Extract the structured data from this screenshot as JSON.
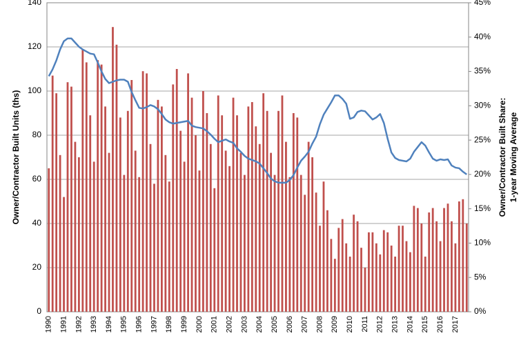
{
  "chart_data": {
    "type": "bar",
    "ylabel": "Owner/Contractor Built Units (ths)",
    "y2label": [
      "Owner/Contractor Built Share:",
      "1-year Moving Average"
    ],
    "ylim": [
      0,
      140
    ],
    "yticks": [
      0,
      20,
      40,
      60,
      80,
      100,
      120,
      140
    ],
    "y2lim": [
      0,
      45
    ],
    "y2ticks": [
      {
        "value": 0,
        "label": "0%"
      },
      {
        "value": 5,
        "label": "5%"
      },
      {
        "value": 10,
        "label": "10%"
      },
      {
        "value": 15,
        "label": "15%"
      },
      {
        "value": 20,
        "label": "20%"
      },
      {
        "value": 25,
        "label": "25%"
      },
      {
        "value": 30,
        "label": "30%"
      },
      {
        "value": 35,
        "label": "35%"
      },
      {
        "value": 40,
        "label": "40%"
      },
      {
        "value": 45,
        "label": "45%"
      }
    ],
    "grid": true,
    "categories": [
      "1990",
      null,
      null,
      null,
      "1991",
      null,
      null,
      null,
      "1992",
      null,
      null,
      null,
      "1993",
      null,
      null,
      null,
      "1994",
      null,
      null,
      null,
      "1995",
      null,
      null,
      null,
      "1996",
      null,
      null,
      null,
      "1997",
      null,
      null,
      null,
      "1998",
      null,
      null,
      null,
      "1999",
      null,
      null,
      null,
      "2000",
      null,
      null,
      null,
      "2001",
      null,
      null,
      null,
      "2002",
      null,
      null,
      null,
      "2003",
      null,
      null,
      null,
      "2004",
      null,
      null,
      null,
      "2005",
      null,
      null,
      null,
      "2006",
      null,
      null,
      null,
      "2007",
      null,
      null,
      null,
      "2008",
      null,
      null,
      null,
      "2009",
      null,
      null,
      null,
      "2010",
      null,
      null,
      null,
      "2011",
      null,
      null,
      null,
      "2012",
      null,
      null,
      null,
      "2013",
      null,
      null,
      null,
      "2014",
      null,
      null,
      null,
      "2015",
      null,
      null,
      null,
      "2016",
      null,
      null,
      null,
      "2017",
      null,
      null,
      null
    ],
    "series": [
      {
        "type": "bar",
        "color": "#c0504d",
        "values": [
          65,
          107,
          99,
          71,
          52,
          104,
          102,
          77,
          70,
          119,
          113,
          89,
          68,
          114,
          112,
          93,
          72,
          129,
          121,
          88,
          62,
          91,
          105,
          73,
          61,
          109,
          108,
          76,
          58,
          96,
          93,
          71,
          59,
          103,
          110,
          82,
          68,
          108,
          97,
          80,
          64,
          100,
          90,
          76,
          56,
          98,
          89,
          73,
          66,
          97,
          89,
          72,
          62,
          93,
          95,
          84,
          76,
          99,
          91,
          72,
          62,
          91,
          98,
          77,
          61,
          90,
          88,
          62,
          53,
          77,
          70,
          54,
          39,
          59,
          46,
          33,
          24,
          38,
          42,
          31,
          25,
          44,
          41,
          29,
          20,
          36,
          36,
          31,
          26,
          37,
          36,
          30,
          25,
          39,
          39,
          32,
          27,
          48,
          47,
          40,
          25,
          45,
          47,
          41,
          32,
          47,
          49,
          41,
          31,
          50,
          51,
          40
        ]
      },
      {
        "type": "line",
        "axis": "y2",
        "color": "#4f81bd",
        "values": [
          34.3,
          35.3,
          36.6,
          38.2,
          39.4,
          39.8,
          39.8,
          39.2,
          38.6,
          38.2,
          37.9,
          37.6,
          37.5,
          36.3,
          35,
          33.9,
          33.3,
          33.5,
          33.7,
          33.8,
          33.8,
          33.5,
          32,
          30.8,
          29.7,
          29.6,
          29.8,
          30.1,
          29.9,
          29.5,
          28.8,
          28,
          27.6,
          27.4,
          27.5,
          27.6,
          27.7,
          27.8,
          27.1,
          26.9,
          26.8,
          26.7,
          26.3,
          25.8,
          25.2,
          24.7,
          24.9,
          25.1,
          24.8,
          24.6,
          23.8,
          23.3,
          22.7,
          22.3,
          22.1,
          21.9,
          21.6,
          20.9,
          20.2,
          19.4,
          19,
          18.8,
          18.8,
          18.8,
          19.2,
          19.9,
          21,
          22,
          22.6,
          23.3,
          24.5,
          25.5,
          27.3,
          28.7,
          29.6,
          30.5,
          31.5,
          31.5,
          31,
          30.3,
          28.1,
          28.3,
          29.1,
          29.3,
          29.2,
          28.6,
          28,
          28.3,
          28.8,
          27.5,
          25.2,
          23.2,
          22.4,
          22.1,
          22,
          21.9,
          22.3,
          23.3,
          24,
          24.7,
          24.2,
          23.2,
          22.3,
          22,
          22.2,
          22.1,
          22.2,
          21.3,
          21,
          20.9,
          20.4,
          20
        ]
      }
    ]
  }
}
